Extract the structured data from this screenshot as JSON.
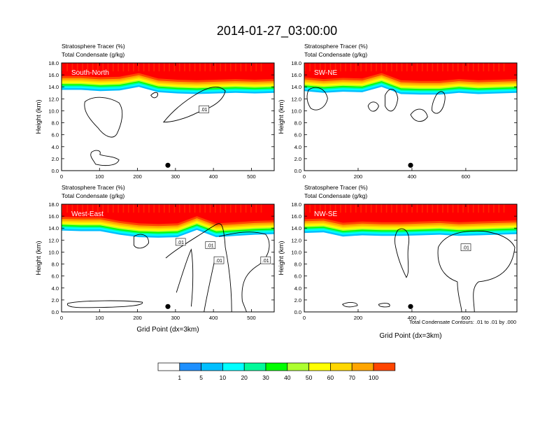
{
  "figure_title": "2014-01-27_03:00:00",
  "footnote": "Total Condensate Contours: .01 to .01 by .000",
  "colorbar": {
    "levels": [
      "1",
      "5",
      "10",
      "20",
      "30",
      "40",
      "50",
      "60",
      "70",
      "100"
    ],
    "colors": [
      "#ffffff",
      "#1e90ff",
      "#00bfff",
      "#00ffff",
      "#00fa9a",
      "#00ff00",
      "#adff2f",
      "#ffff00",
      "#ffd700",
      "#ffa500",
      "#ff4500",
      "#ff0000"
    ]
  },
  "chart_data": [
    {
      "type": "contour",
      "panel": "South-North",
      "titles": [
        "Stratosphere Tracer   (%)",
        "Total Condensate   (g/kg)"
      ],
      "ylabel": "Height (km)",
      "xlabel": "",
      "xlim": [
        0,
        560
      ],
      "ylim": [
        0,
        18
      ],
      "xticks": [
        "0",
        "100",
        "200",
        "300",
        "400",
        "500"
      ],
      "xtick_values": [
        0,
        100,
        200,
        300,
        400,
        500
      ],
      "yticks": [
        "0.0",
        "2.0",
        "4.0",
        "6.0",
        "8.0",
        "10.0",
        "12.0",
        "14.0",
        "16.0",
        "18.0"
      ],
      "marker_x": 280,
      "tracer_base_km": [
        15.8,
        15.8,
        15.6,
        15.7,
        16.3,
        15.4,
        15.2,
        15.1,
        15.2,
        15.3,
        15.2,
        15.3
      ],
      "contour_label": ".01"
    },
    {
      "type": "contour",
      "panel": "SW-NE",
      "titles": [
        "Stratosphere Tracer   (%)",
        "Total Condensate   (g/kg)"
      ],
      "ylabel": "Height (km)",
      "xlabel": "",
      "xlim": [
        0,
        790
      ],
      "ylim": [
        0,
        18
      ],
      "xticks": [
        "0",
        "200",
        "400",
        "600"
      ],
      "xtick_values": [
        0,
        200,
        400,
        600
      ],
      "yticks": [
        "0.0",
        "2.0",
        "4.0",
        "6.0",
        "8.0",
        "10.0",
        "12.0",
        "14.0",
        "16.0",
        "18.0"
      ],
      "marker_x": 395,
      "tracer_base_km": [
        15.6,
        15.3,
        15.5,
        15.4,
        16.3,
        15.1,
        15.0,
        15.0,
        15.3,
        15.1,
        15.2,
        15.3
      ],
      "contour_label": ""
    },
    {
      "type": "contour",
      "panel": "West-East",
      "titles": [
        "Stratosphere Tracer   (%)",
        "Total Condensate   (g/kg)"
      ],
      "ylabel": "Height (km)",
      "xlabel": "Grid Point (dx=3km)",
      "xlim": [
        0,
        560
      ],
      "ylim": [
        0,
        18
      ],
      "xticks": [
        "0",
        "100",
        "200",
        "300",
        "400",
        "500"
      ],
      "xtick_values": [
        0,
        100,
        200,
        300,
        400,
        500
      ],
      "yticks": [
        "0.0",
        "2.0",
        "4.0",
        "6.0",
        "8.0",
        "10.0",
        "12.0",
        "14.0",
        "16.0",
        "18.0"
      ],
      "marker_x": 280,
      "tracer_base_km": [
        15.9,
        15.8,
        15.8,
        15.2,
        14.8,
        14.7,
        14.8,
        16.0,
        14.8,
        15.0,
        15.2,
        15.3
      ],
      "contour_label": ".01"
    },
    {
      "type": "contour",
      "panel": "NW-SE",
      "titles": [
        "Stratosphere Tracer   (%)",
        "Total Condensate   (g/kg)"
      ],
      "ylabel": "Height (km)",
      "xlabel": "Grid Point (dx=3km)",
      "xlim": [
        0,
        790
      ],
      "ylim": [
        0,
        18
      ],
      "xticks": [
        "0",
        "200",
        "400",
        "600"
      ],
      "xtick_values": [
        0,
        200,
        400,
        600
      ],
      "yticks": [
        "0.0",
        "2.0",
        "4.0",
        "6.0",
        "8.0",
        "10.0",
        "12.0",
        "14.0",
        "16.0",
        "18.0"
      ],
      "marker_x": 395,
      "tracer_base_km": [
        15.5,
        15.6,
        14.9,
        15.1,
        15.0,
        15.0,
        15.1,
        15.2,
        15.0,
        15.1,
        15.2,
        15.3
      ],
      "contour_label": ".01"
    }
  ]
}
